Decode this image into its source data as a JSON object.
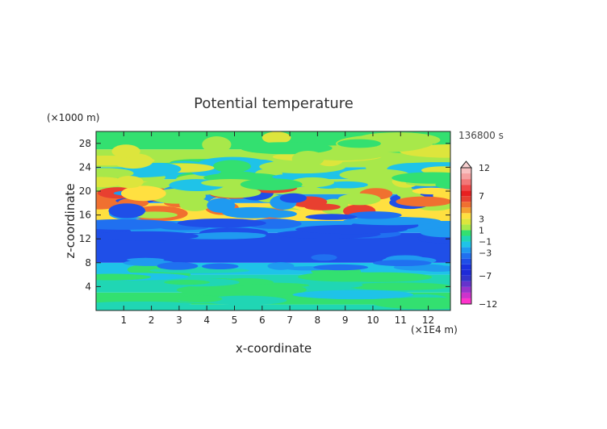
{
  "chart_data": {
    "type": "heatmap",
    "title": "Potential temperature",
    "time_label": "136800 s",
    "xlabel": "x-coordinate",
    "ylabel": "z-coordinate",
    "x_unit": "(×1E4 m)",
    "y_unit": "(×1000 m)",
    "xlim": [
      0,
      12.8
    ],
    "ylim": [
      0,
      30
    ],
    "x_ticks": [
      "1",
      "2",
      "3",
      "4",
      "5",
      "6",
      "7",
      "8",
      "9",
      "10",
      "11",
      "12"
    ],
    "y_ticks": [
      "4",
      "8",
      "12",
      "16",
      "20",
      "24",
      "28"
    ],
    "y_tick_values": [
      4,
      8,
      12,
      16,
      20,
      24,
      28
    ],
    "x_tick_values": [
      1,
      2,
      3,
      4,
      5,
      6,
      7,
      8,
      9,
      10,
      11,
      12
    ],
    "colorbar": {
      "levels": [
        -12,
        -11,
        -10,
        -9,
        -8,
        -7,
        -6,
        -5,
        -4,
        -3,
        -2,
        -1,
        0,
        1,
        2,
        3,
        4,
        5,
        6,
        7,
        8,
        9,
        10,
        11,
        12
      ],
      "labeled_levels": [
        "12",
        "7",
        "3",
        "1",
        "−1",
        "−3",
        "−7",
        "−12"
      ],
      "labeled_values": [
        12,
        7,
        3,
        1,
        -1,
        -3,
        -7,
        -12
      ],
      "colors": [
        "#ff33cc",
        "#cc33cc",
        "#9933cc",
        "#6633cc",
        "#3333cc",
        "#1e2ad8",
        "#1a33e0",
        "#1f4fe8",
        "#2070f0",
        "#1f9af0",
        "#1fc3e8",
        "#20d6b4",
        "#33e070",
        "#a8e84a",
        "#dde53c",
        "#ffe040",
        "#f5a030",
        "#f07030",
        "#e84030",
        "#e82020",
        "#f04848",
        "#f27878",
        "#f5a0a0",
        "#f8c0c0"
      ]
    },
    "bands": [
      {
        "z": [
          0,
          1
        ],
        "value": -0.5
      },
      {
        "z": [
          1,
          3
        ],
        "value": 0.4
      },
      {
        "z": [
          3,
          6
        ],
        "value": -0.3
      },
      {
        "z": [
          6,
          8
        ],
        "value": -1.8
      },
      {
        "z": [
          8,
          13
        ],
        "value": -4.2
      },
      {
        "z": [
          13,
          15
        ],
        "value": -2.3
      },
      {
        "z": [
          15,
          18
        ],
        "value": 3.4
      },
      {
        "z": [
          18,
          19.5
        ],
        "value": -2.8
      },
      {
        "z": [
          19.5,
          22
        ],
        "value": 1.6
      },
      {
        "z": [
          22,
          24
        ],
        "value": -1.4
      },
      {
        "z": [
          24,
          27
        ],
        "value": 1.2
      },
      {
        "z": [
          27,
          30
        ],
        "value": 0.2
      }
    ]
  }
}
